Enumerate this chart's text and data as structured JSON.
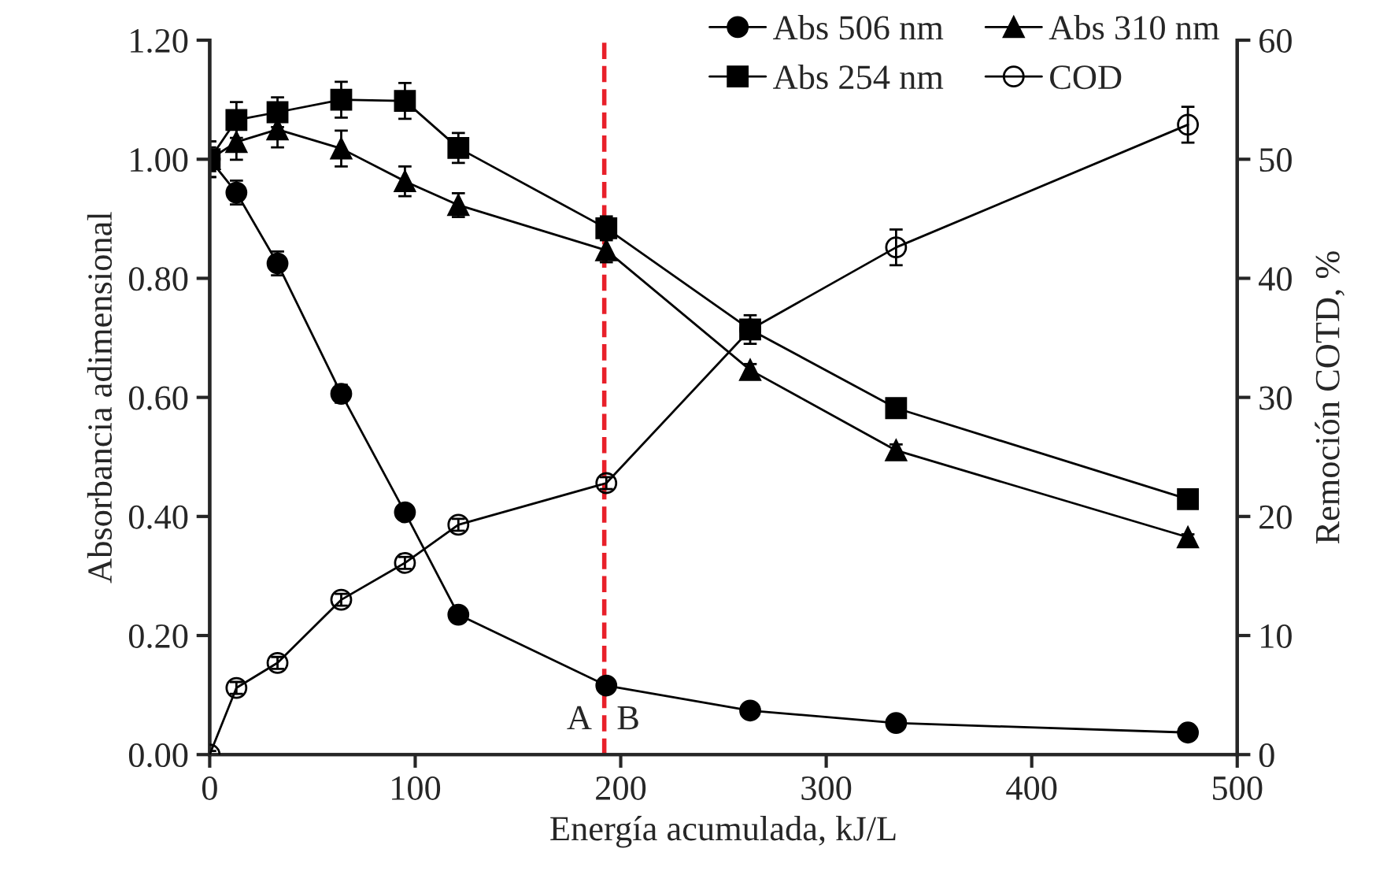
{
  "chart_data": {
    "type": "line",
    "xlabel": "Energía acumulada, kJ/L",
    "ylabel": "Absorbancia adimensional",
    "y2label": "Remoción COTD, %",
    "x": [
      0,
      13,
      33,
      64,
      95,
      121,
      193,
      263,
      334,
      476
    ],
    "xlim": [
      0,
      500
    ],
    "xticks": [
      0,
      100,
      200,
      300,
      400,
      500
    ],
    "ylim": [
      0,
      1.2
    ],
    "yticks": [
      {
        "value": 0,
        "label": "0.00"
      },
      {
        "value": 0.2,
        "label": "0.20"
      },
      {
        "value": 0.4,
        "label": "0.40"
      },
      {
        "value": 0.6,
        "label": "0.60"
      },
      {
        "value": 0.8,
        "label": "0.80"
      },
      {
        "value": 1.0,
        "label": "1.00"
      },
      {
        "value": 1.2,
        "label": "1.20"
      }
    ],
    "y2lim": [
      0,
      60
    ],
    "y2ticks": [
      0,
      10,
      20,
      30,
      40,
      50,
      60
    ],
    "series": [
      {
        "name": "Abs 506 nm",
        "color": "#000000",
        "marker": "circle",
        "values": [
          1.0,
          0.944,
          0.825,
          0.606,
          0.407,
          0.235,
          0.116,
          0.074,
          0.053,
          0.037
        ],
        "errors": [
          0.02,
          0.02,
          0.02,
          0.015,
          0.01,
          0.01,
          0.01,
          0.005,
          0.005,
          0.005
        ]
      },
      {
        "name": "Abs 310 nm",
        "color": "#000000",
        "marker": "triangle",
        "values": [
          1.0,
          1.029,
          1.05,
          1.018,
          0.963,
          0.923,
          0.847,
          0.646,
          0.511,
          0.365
        ],
        "errors": [
          0.03,
          0.03,
          0.03,
          0.03,
          0.025,
          0.02,
          0.02,
          0.01,
          0.01,
          0.005
        ]
      },
      {
        "name": "Abs 254 nm",
        "color": "#000000",
        "marker": "square",
        "values": [
          1.0,
          1.066,
          1.079,
          1.1,
          1.098,
          1.019,
          0.884,
          0.714,
          0.582,
          0.429
        ],
        "errors": [
          0.03,
          0.03,
          0.025,
          0.03,
          0.03,
          0.025,
          0.02,
          null,
          0.01,
          0.005
        ]
      },
      {
        "name": "COD",
        "color": "#000000",
        "marker": "open circle",
        "axis": "y2",
        "values": [
          0,
          5.6,
          7.7,
          13.0,
          16.1,
          19.3,
          22.8,
          35.7,
          42.6,
          52.9
        ],
        "errors": [
          0.3,
          0.5,
          0.5,
          0.5,
          0.5,
          0.5,
          0.5,
          1.2,
          1.5,
          1.5
        ]
      }
    ],
    "ref_lines": [
      {
        "axis": "x",
        "value": 192,
        "color": "#e8202a",
        "line_style": "dashed"
      }
    ],
    "annotations": [
      "A",
      "B"
    ],
    "legend": "top right",
    "grid": false
  }
}
